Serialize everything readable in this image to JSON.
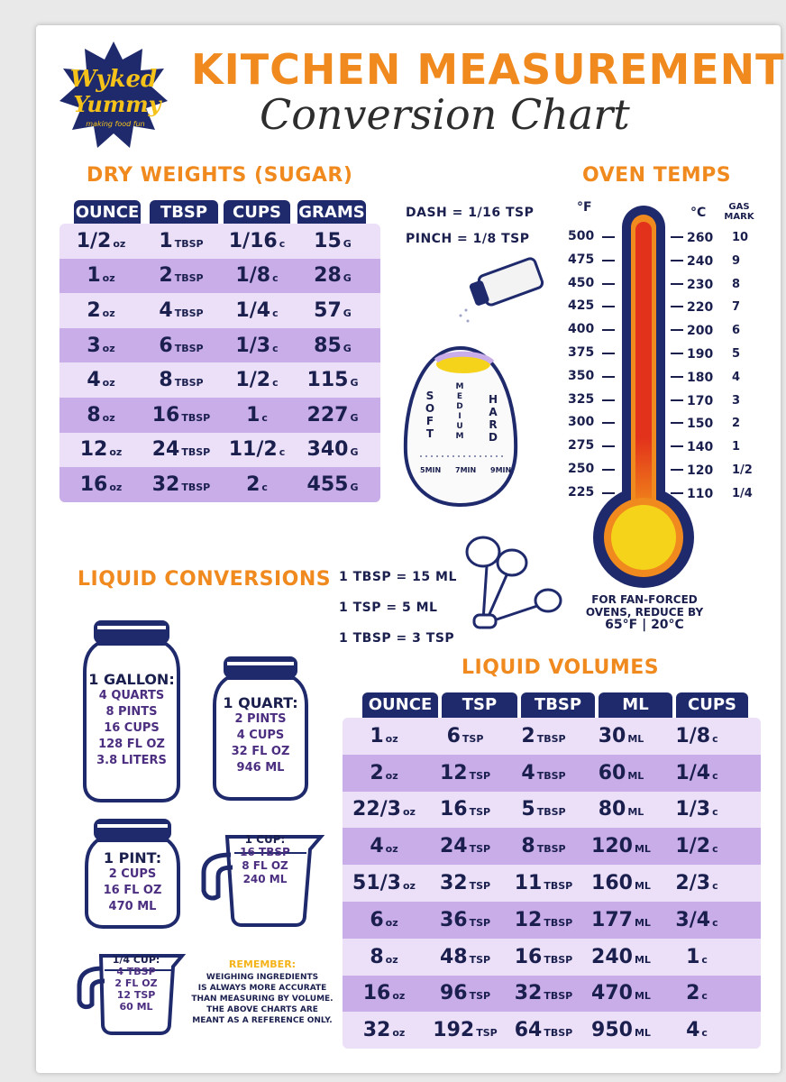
{
  "brand": {
    "logo_text_1": "Wyked",
    "logo_text_2": "Yummy",
    "logo_tagline": "making food fun"
  },
  "title": {
    "line1": "KITCHEN MEASUREMENTS",
    "line2": "Conversion Chart"
  },
  "dry": {
    "title": "DRY WEIGHTS (SUGAR)",
    "headers": [
      "OUNCE",
      "TBSP",
      "CUPS",
      "GRAMS"
    ],
    "rows": [
      [
        [
          "1/2",
          "oz"
        ],
        [
          "1",
          "TBSP"
        ],
        [
          "1/16",
          "c"
        ],
        [
          "15",
          "G"
        ]
      ],
      [
        [
          "1",
          "oz"
        ],
        [
          "2",
          "TBSP"
        ],
        [
          "1/8",
          "c"
        ],
        [
          "28",
          "G"
        ]
      ],
      [
        [
          "2",
          "oz"
        ],
        [
          "4",
          "TBSP"
        ],
        [
          "1/4",
          "c"
        ],
        [
          "57",
          "G"
        ]
      ],
      [
        [
          "3",
          "oz"
        ],
        [
          "6",
          "TBSP"
        ],
        [
          "1/3",
          "c"
        ],
        [
          "85",
          "G"
        ]
      ],
      [
        [
          "4",
          "oz"
        ],
        [
          "8",
          "TBSP"
        ],
        [
          "1/2",
          "c"
        ],
        [
          "115",
          "G"
        ]
      ],
      [
        [
          "8",
          "oz"
        ],
        [
          "16",
          "TBSP"
        ],
        [
          "1",
          "c"
        ],
        [
          "227",
          "G"
        ]
      ],
      [
        [
          "12",
          "oz"
        ],
        [
          "24",
          "TBSP"
        ],
        [
          "11/2",
          "c"
        ],
        [
          "340",
          "G"
        ]
      ],
      [
        [
          "16",
          "oz"
        ],
        [
          "32",
          "TBSP"
        ],
        [
          "2",
          "c"
        ],
        [
          "455",
          "G"
        ]
      ]
    ]
  },
  "dash": {
    "dash": "DASH = 1/16 TSP",
    "pinch": "PINCH = 1/8 TSP"
  },
  "egg": {
    "soft": "SOFT",
    "medium": "MEDIUM",
    "hard": "HARD",
    "t1": "5MIN",
    "t2": "7MIN",
    "t3": "9MIN"
  },
  "oven": {
    "title": "OVEN TEMPS",
    "f_label": "°F",
    "c_label": "°C",
    "gas_label": "GAS MARK",
    "f": [
      "500",
      "475",
      "450",
      "425",
      "400",
      "375",
      "350",
      "325",
      "300",
      "275",
      "250",
      "225"
    ],
    "c": [
      "260",
      "240",
      "230",
      "220",
      "200",
      "190",
      "180",
      "170",
      "150",
      "140",
      "120",
      "110"
    ],
    "gas": [
      "10",
      "9",
      "8",
      "7",
      "6",
      "5",
      "4",
      "3",
      "2",
      "1",
      "1/2",
      "1/4"
    ],
    "note1": "FOR FAN-FORCED",
    "note2": "OVENS, REDUCE BY",
    "note3": "65°F | 20°C"
  },
  "liquid_conv": {
    "title": "LIQUID CONVERSIONS",
    "l1": "1 TBSP = 15 ML",
    "l2": "1 TSP = 5 ML",
    "l3": "1 TBSP = 3 TSP"
  },
  "jars": {
    "gallon": {
      "head": "1 GALLON:",
      "lines": [
        "4 QUARTS",
        "8 PINTS",
        "16 CUPS",
        "128 FL OZ",
        "3.8 LITERS"
      ]
    },
    "quart": {
      "head": "1 QUART:",
      "lines": [
        "2 PINTS",
        "4 CUPS",
        "32 FL OZ",
        "946 ML"
      ]
    },
    "pint": {
      "head": "1 PINT:",
      "lines": [
        "2 CUPS",
        "16 FL OZ",
        "470 ML"
      ]
    },
    "cup": {
      "head": "1 CUP:",
      "lines": [
        "16 TBSP",
        "8 FL OZ",
        "240 ML"
      ]
    },
    "quarter": {
      "head": "1/4 CUP:",
      "lines": [
        "4 TBSP",
        "2 FL OZ",
        "12 TSP",
        "60 ML"
      ]
    }
  },
  "remember": {
    "title": "REMEMBER:",
    "lines": [
      "WEIGHING INGREDIENTS",
      "IS ALWAYS MORE ACCURATE",
      "THAN MEASURING BY VOLUME.",
      "THE ABOVE CHARTS ARE",
      "MEANT AS A REFERENCE ONLY."
    ]
  },
  "liquid_vol": {
    "title": "LIQUID VOLUMES",
    "headers": [
      "OUNCE",
      "TSP",
      "TBSP",
      "ML",
      "CUPS"
    ],
    "rows": [
      [
        [
          "1",
          "oz"
        ],
        [
          "6",
          "TSP"
        ],
        [
          "2",
          "TBSP"
        ],
        [
          "30",
          "ML"
        ],
        [
          "1/8",
          "c"
        ]
      ],
      [
        [
          "2",
          "oz"
        ],
        [
          "12",
          "TSP"
        ],
        [
          "4",
          "TBSP"
        ],
        [
          "60",
          "ML"
        ],
        [
          "1/4",
          "c"
        ]
      ],
      [
        [
          "22/3",
          "oz"
        ],
        [
          "16",
          "TSP"
        ],
        [
          "5",
          "TBSP"
        ],
        [
          "80",
          "ML"
        ],
        [
          "1/3",
          "c"
        ]
      ],
      [
        [
          "4",
          "oz"
        ],
        [
          "24",
          "TSP"
        ],
        [
          "8",
          "TBSP"
        ],
        [
          "120",
          "ML"
        ],
        [
          "1/2",
          "c"
        ]
      ],
      [
        [
          "51/3",
          "oz"
        ],
        [
          "32",
          "TSP"
        ],
        [
          "11",
          "TBSP"
        ],
        [
          "160",
          "ML"
        ],
        [
          "2/3",
          "c"
        ]
      ],
      [
        [
          "6",
          "oz"
        ],
        [
          "36",
          "TSP"
        ],
        [
          "12",
          "TBSP"
        ],
        [
          "177",
          "ML"
        ],
        [
          "3/4",
          "c"
        ]
      ],
      [
        [
          "8",
          "oz"
        ],
        [
          "48",
          "TSP"
        ],
        [
          "16",
          "TBSP"
        ],
        [
          "240",
          "ML"
        ],
        [
          "1",
          "c"
        ]
      ],
      [
        [
          "16",
          "oz"
        ],
        [
          "96",
          "TSP"
        ],
        [
          "32",
          "TBSP"
        ],
        [
          "470",
          "ML"
        ],
        [
          "2",
          "c"
        ]
      ],
      [
        [
          "32",
          "oz"
        ],
        [
          "192",
          "TSP"
        ],
        [
          "64",
          "TBSP"
        ],
        [
          "950",
          "ML"
        ],
        [
          "4",
          "c"
        ]
      ]
    ]
  },
  "colors": {
    "orange": "#f08a1f",
    "navy": "#1f2a6c",
    "lavender_light": "#ebe0f7",
    "lavender_dark": "#c9ade8",
    "thermo_red": "#e2321b",
    "thermo_yellow": "#f5d31a"
  }
}
